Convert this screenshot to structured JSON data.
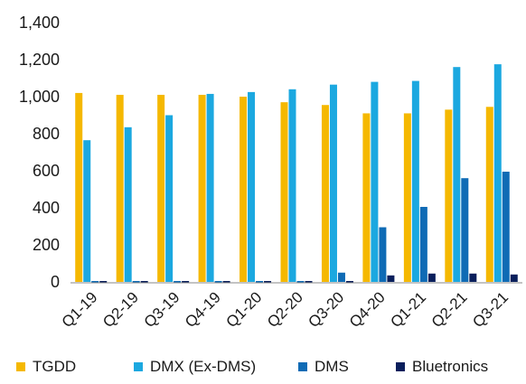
{
  "header": {
    "title_fragment": ""
  },
  "chart_data": {
    "type": "bar",
    "title": "",
    "xlabel": "",
    "ylabel": "",
    "ylim": [
      0,
      1400
    ],
    "yticks": [
      "0",
      "200",
      "400",
      "600",
      "800",
      "1,000",
      "1,200",
      "1,400"
    ],
    "categories": [
      "Q1-19",
      "Q2-19",
      "Q3-19",
      "Q4-19",
      "Q1-20",
      "Q2-20",
      "Q3-20",
      "Q4-20",
      "Q1-21",
      "Q2-21",
      "Q3-21"
    ],
    "series": [
      {
        "name": "TGDD",
        "color": "#F5B800",
        "values": [
          1020,
          1010,
          1010,
          1010,
          1000,
          970,
          955,
          910,
          910,
          930,
          945
        ]
      },
      {
        "name": "DMX (Ex-DMS)",
        "color": "#1BA8E0",
        "values": [
          765,
          835,
          900,
          1015,
          1025,
          1040,
          1065,
          1080,
          1085,
          1160,
          1175
        ]
      },
      {
        "name": "DMS",
        "color": "#0F6BB5",
        "values": [
          0,
          0,
          0,
          0,
          0,
          0,
          50,
          295,
          405,
          560,
          595
        ]
      },
      {
        "name": "Bluetronics",
        "color": "#0A1F5C",
        "values": [
          0,
          0,
          0,
          0,
          0,
          0,
          0,
          35,
          45,
          45,
          40
        ]
      }
    ],
    "grid": false,
    "legend_position": "bottom"
  }
}
